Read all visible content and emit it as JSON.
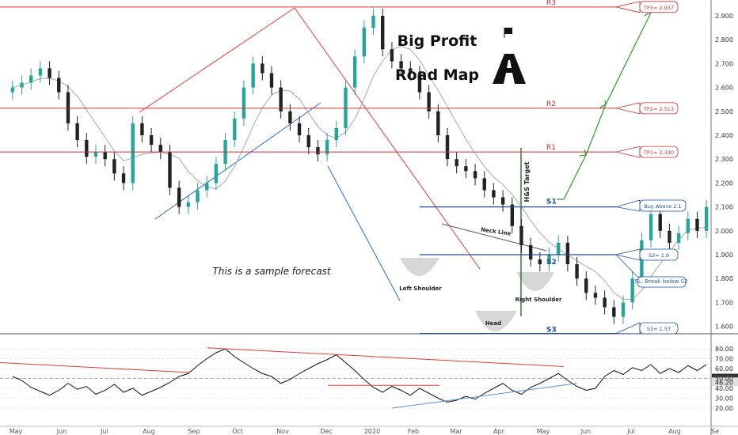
{
  "chart_data": [
    {
      "type": "candlestick",
      "title": "Big Profit",
      "subtitle": "Road Map",
      "note": "This is a sample forecast",
      "ylim": [
        1.55,
        2.96
      ],
      "y_ticks": [
        "2.900",
        "2.800",
        "2.700",
        "2.600",
        "2.500",
        "2.400",
        "2.300",
        "2.200",
        "2.100",
        "2.000",
        "1.900",
        "1.800",
        "1.700",
        "1.600"
      ],
      "x_ticks": [
        "May",
        "Jun",
        "Jul",
        "Aug",
        "Sep",
        "Oct",
        "Nov",
        "Dec",
        "2020",
        "Feb",
        "Mar",
        "Apr",
        "May",
        "Jun",
        "Jul",
        "Aug",
        "Se"
      ],
      "close_approx": [
        2.6,
        2.62,
        2.65,
        2.68,
        2.64,
        2.58,
        2.45,
        2.38,
        2.31,
        2.33,
        2.3,
        2.24,
        2.2,
        2.45,
        2.4,
        2.36,
        2.33,
        2.18,
        2.1,
        2.12,
        2.17,
        2.2,
        2.28,
        2.38,
        2.47,
        2.6,
        2.7,
        2.66,
        2.6,
        2.5,
        2.45,
        2.4,
        2.35,
        2.32,
        2.38,
        2.43,
        2.6,
        2.73,
        2.85,
        2.9,
        2.76,
        2.71,
        2.68,
        2.66,
        2.58,
        2.5,
        2.4,
        2.3,
        2.27,
        2.25,
        2.22,
        2.17,
        2.14,
        2.11,
        2.02,
        1.94,
        1.88,
        1.86,
        1.9,
        1.95,
        1.86,
        1.8,
        1.74,
        1.72,
        1.68,
        1.64,
        1.7,
        1.8,
        1.96,
        2.07,
        2.0,
        1.95,
        1.99,
        2.05,
        2.0,
        2.1
      ],
      "levels": [
        {
          "label": "R3",
          "value": 2.937,
          "tag": "TP3= 2.937"
        },
        {
          "label": "R2",
          "value": 2.513,
          "tag": "TP2= 2.513"
        },
        {
          "label": "R1",
          "value": 2.33,
          "tag": "TP1= 2.330"
        },
        {
          "label": "S1",
          "value": 2.1,
          "tag": "Buy Above 2.1"
        },
        {
          "label": "S2",
          "value": 1.9,
          "tag": "S2= 1.9"
        },
        {
          "label": "S3",
          "value": 1.57,
          "tag": "S3= 1.57"
        }
      ],
      "sl_note": "SL: Break below S2",
      "pattern_labels": [
        "Left Shoulder",
        "Head",
        "Right Shoulder",
        "Neck Line",
        "H&S Target"
      ]
    },
    {
      "type": "line",
      "name": "oscillator",
      "ylim": [
        10,
        90
      ],
      "y_ticks": [
        "80.00",
        "70.00",
        "60.00",
        "50.00",
        "40.00",
        "30.00",
        "20.00"
      ],
      "reference_values": [
        "50.00",
        "46.20"
      ],
      "values_approx": [
        52,
        48,
        41,
        37,
        33,
        38,
        45,
        39,
        42,
        34,
        38,
        44,
        36,
        40,
        33,
        37,
        41,
        46,
        52,
        55,
        63,
        70,
        76,
        80,
        72,
        66,
        60,
        55,
        52,
        45,
        49,
        55,
        60,
        65,
        69,
        74,
        66,
        58,
        49,
        41,
        36,
        42,
        38,
        33,
        40,
        35,
        30,
        26,
        28,
        32,
        29,
        35,
        40,
        45,
        38,
        34,
        41,
        45,
        50,
        55,
        48,
        42,
        38,
        40,
        52,
        58,
        54,
        61,
        58,
        64,
        55,
        60,
        56,
        63,
        58,
        64
      ]
    }
  ]
}
